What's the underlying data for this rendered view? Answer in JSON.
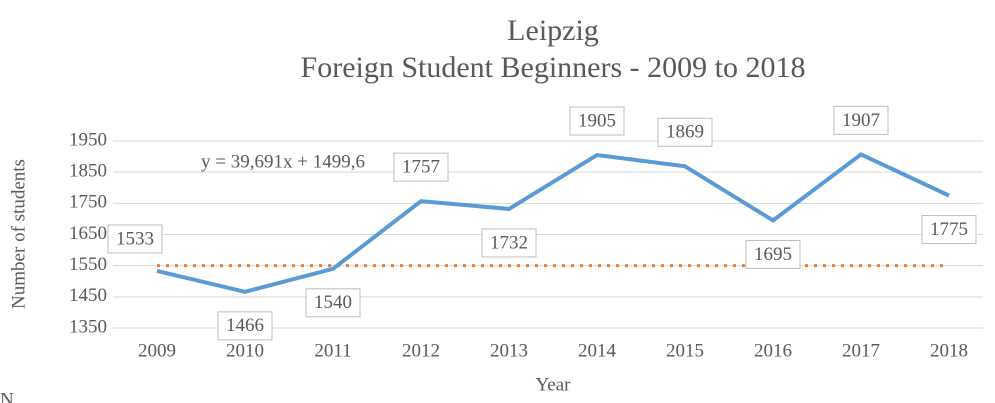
{
  "chart_data": {
    "type": "line",
    "title": "Leipzig",
    "subtitle": "Foreign Student Beginners - 2009 to 2018",
    "y_label": "Number of students",
    "x_label": "Year",
    "annotation": "y = 39,691x + 1499,6",
    "footnote": "N",
    "categories": [
      "2009",
      "2010",
      "2011",
      "2012",
      "2013",
      "2014",
      "2015",
      "2016",
      "2017",
      "2018"
    ],
    "series": [
      {
        "name": null,
        "color": "#5b9bd5",
        "values": [
          1533,
          1466,
          1540,
          1757,
          1732,
          1905,
          1869,
          1695,
          1907,
          1775
        ]
      },
      {
        "name": null,
        "color": "#ed7d31",
        "dotted": true,
        "values": [
          1550,
          1550,
          1550,
          1550,
          1550,
          1550,
          1550,
          1550,
          1550,
          1550
        ]
      }
    ],
    "data_labels_series": 0,
    "ylim": [
      1350,
      1950
    ],
    "yticks": [
      1350,
      1450,
      1550,
      1650,
      1750,
      1850,
      1950
    ],
    "grid": true
  }
}
